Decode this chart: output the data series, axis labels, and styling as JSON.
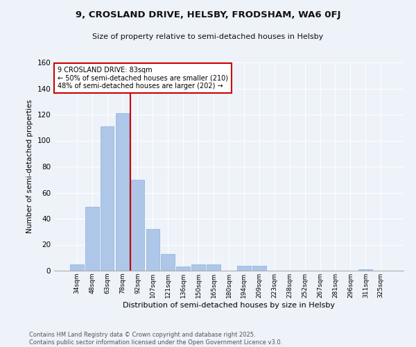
{
  "title": "9, CROSLAND DRIVE, HELSBY, FRODSHAM, WA6 0FJ",
  "subtitle": "Size of property relative to semi-detached houses in Helsby",
  "xlabel": "Distribution of semi-detached houses by size in Helsby",
  "ylabel": "Number of semi-detached properties",
  "categories": [
    "34sqm",
    "48sqm",
    "63sqm",
    "78sqm",
    "92sqm",
    "107sqm",
    "121sqm",
    "136sqm",
    "150sqm",
    "165sqm",
    "180sqm",
    "194sqm",
    "209sqm",
    "223sqm",
    "238sqm",
    "252sqm",
    "267sqm",
    "281sqm",
    "296sqm",
    "311sqm",
    "325sqm"
  ],
  "values": [
    5,
    49,
    111,
    121,
    70,
    32,
    13,
    3,
    5,
    5,
    0,
    4,
    4,
    0,
    0,
    0,
    0,
    0,
    0,
    1,
    0
  ],
  "bar_color": "#aec6e8",
  "bar_edge_color": "#8ab4d8",
  "vline_x_index": 3.5,
  "vline_color": "#cc0000",
  "annotation_box_color": "#ffffff",
  "property_label": "9 CROSLAND DRIVE: 83sqm",
  "annotation_line1": "← 50% of semi-detached houses are smaller (210)",
  "annotation_line2": "48% of semi-detached houses are larger (202) →",
  "footer_line1": "Contains HM Land Registry data © Crown copyright and database right 2025.",
  "footer_line2": "Contains public sector information licensed under the Open Government Licence v3.0.",
  "background_color": "#eef2f9",
  "ylim": [
    0,
    160
  ],
  "yticks": [
    0,
    20,
    40,
    60,
    80,
    100,
    120,
    140,
    160
  ]
}
